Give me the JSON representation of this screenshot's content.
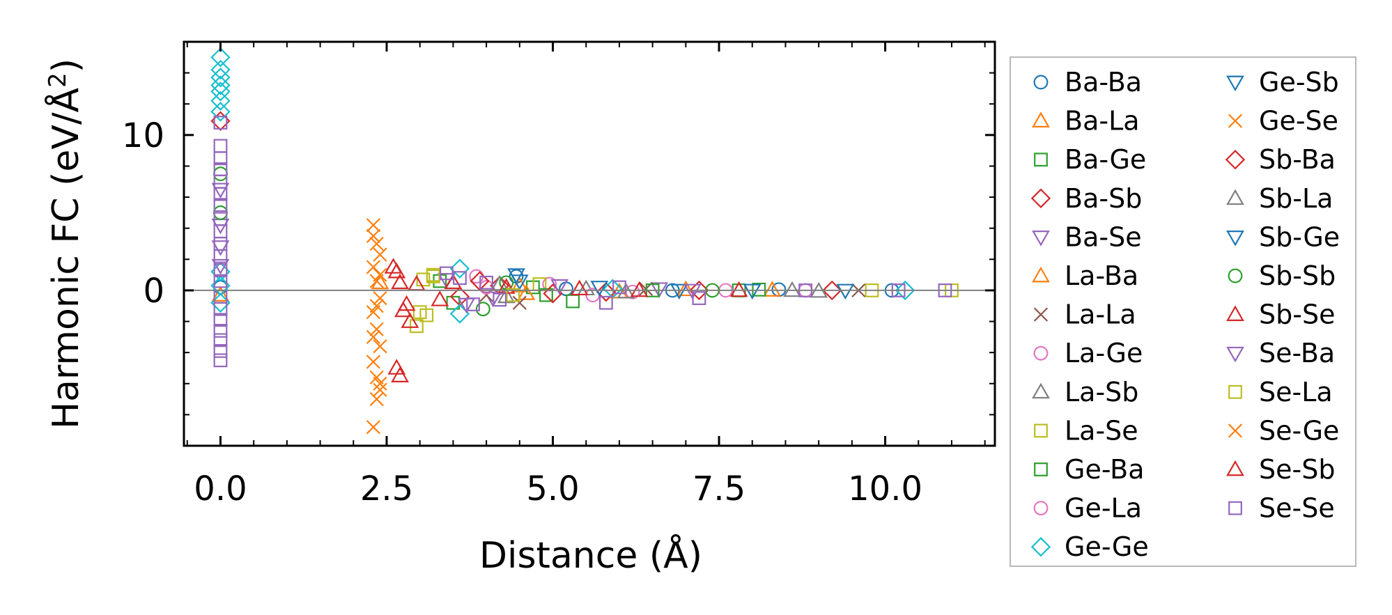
{
  "chart_data": {
    "type": "scatter",
    "xlabel": "Distance (Å)",
    "ylabel_main": "Harmonic FC (eV/Å",
    "ylabel_sup": "2",
    "ylabel_close": ")",
    "xlim": [
      -0.55,
      11.65
    ],
    "ylim": [
      -10,
      16
    ],
    "xticks": [
      0.0,
      2.5,
      5.0,
      7.5,
      10.0
    ],
    "xtick_labels": [
      "0.0",
      "2.5",
      "5.0",
      "7.5",
      "10.0"
    ],
    "yticks": [
      0,
      10
    ],
    "ytick_labels": [
      "0",
      "10"
    ],
    "reference_line_y": 0,
    "legend_position": "right",
    "series": [
      {
        "name": "Ba-Ba",
        "marker": "circle",
        "color": "#1f77b4",
        "points": [
          [
            0,
            0.2
          ],
          [
            4.45,
            0.9
          ],
          [
            5.2,
            0.1
          ],
          [
            6.8,
            0.0
          ],
          [
            8.4,
            0.05
          ],
          [
            10.1,
            0.0
          ]
        ]
      },
      {
        "name": "Ba-La",
        "marker": "triangle-up",
        "color": "#ff7f0e",
        "points": [
          [
            0,
            -0.3
          ],
          [
            4.5,
            0.3
          ],
          [
            6.0,
            -0.1
          ],
          [
            8.3,
            0.02
          ]
        ]
      },
      {
        "name": "Ba-Ge",
        "marker": "square",
        "color": "#2ca02c",
        "points": [
          [
            3.3,
            0.6
          ],
          [
            3.5,
            -0.8
          ],
          [
            4.7,
            0.2
          ],
          [
            5.3,
            -0.7
          ],
          [
            7.8,
            0.0
          ]
        ]
      },
      {
        "name": "Ba-Sb",
        "marker": "diamond",
        "color": "#d62728",
        "points": [
          [
            0,
            10.9
          ],
          [
            3.6,
            -0.4
          ],
          [
            4.2,
            0.3
          ],
          [
            5.8,
            -0.1
          ],
          [
            9.2,
            0.0
          ]
        ]
      },
      {
        "name": "Ba-Se",
        "marker": "triangle-down",
        "color": "#9467bd",
        "points": [
          [
            0,
            6.5
          ],
          [
            0,
            4.2
          ],
          [
            3.4,
            0.7
          ],
          [
            4.1,
            -0.5
          ],
          [
            6.6,
            0.1
          ]
        ]
      },
      {
        "name": "La-Ba",
        "marker": "triangle-up",
        "color": "#ff7f0e",
        "points": [
          [
            2.4,
            0.5
          ],
          [
            4.6,
            -0.2
          ],
          [
            7.0,
            0.05
          ]
        ]
      },
      {
        "name": "La-La",
        "marker": "x",
        "color": "#8c564b",
        "points": [
          [
            4.0,
            -0.3
          ],
          [
            4.5,
            -0.8
          ],
          [
            6.4,
            0.1
          ],
          [
            9.6,
            0.0
          ]
        ]
      },
      {
        "name": "La-Ge",
        "marker": "circle",
        "color": "#e377c2",
        "points": [
          [
            3.85,
            0.9
          ],
          [
            4.95,
            0.4
          ],
          [
            6.2,
            -0.1
          ],
          [
            8.8,
            0.0
          ]
        ]
      },
      {
        "name": "La-Sb",
        "marker": "triangle-up",
        "color": "#7f7f7f",
        "points": [
          [
            4.3,
            -0.4
          ],
          [
            5.5,
            0.1
          ],
          [
            9.0,
            -0.05
          ]
        ]
      },
      {
        "name": "La-Se",
        "marker": "square",
        "color": "#bcbd22",
        "points": [
          [
            2.95,
            -2.3
          ],
          [
            3.05,
            0.7
          ],
          [
            3.1,
            -1.6
          ],
          [
            3.2,
            0.9
          ],
          [
            4.8,
            0.4
          ],
          [
            11.0,
            0.0
          ]
        ]
      },
      {
        "name": "Ge-Ba",
        "marker": "square",
        "color": "#2ca02c",
        "points": [
          [
            4.9,
            -0.3
          ],
          [
            6.5,
            0.0
          ],
          [
            8.1,
            0.05
          ]
        ]
      },
      {
        "name": "Ge-La",
        "marker": "circle",
        "color": "#e377c2",
        "points": [
          [
            4.0,
            0.2
          ],
          [
            5.6,
            -0.3
          ],
          [
            7.6,
            0.0
          ]
        ]
      },
      {
        "name": "Ge-Ge",
        "marker": "diamond",
        "color": "#17becf",
        "points": [
          [
            0,
            15.0
          ],
          [
            0,
            14.2
          ],
          [
            0,
            13.7
          ],
          [
            0,
            13.2
          ],
          [
            0,
            12.8
          ],
          [
            0,
            12.2
          ],
          [
            0,
            11.5
          ],
          [
            0,
            1.2
          ],
          [
            0,
            0.3
          ],
          [
            0,
            -0.8
          ],
          [
            3.6,
            1.4
          ],
          [
            3.6,
            -1.5
          ],
          [
            5.9,
            0.1
          ],
          [
            10.3,
            0.0
          ]
        ]
      },
      {
        "name": "Ge-Sb",
        "marker": "triangle-down",
        "color": "#1f77b4",
        "points": [
          [
            4.45,
            1.0
          ],
          [
            5.7,
            0.2
          ],
          [
            8.0,
            0.0
          ]
        ]
      },
      {
        "name": "Ge-Se",
        "marker": "x",
        "color": "#ff7f0e",
        "points": [
          [
            2.3,
            4.2
          ],
          [
            2.35,
            3.0
          ],
          [
            2.4,
            2.3
          ],
          [
            2.3,
            1.5
          ],
          [
            2.35,
            0.6
          ],
          [
            2.4,
            -0.5
          ],
          [
            2.3,
            -1.4
          ],
          [
            2.35,
            -2.5
          ],
          [
            2.4,
            -3.6
          ],
          [
            2.3,
            -4.6
          ],
          [
            2.35,
            -5.6
          ],
          [
            2.4,
            -6.4
          ],
          [
            2.35,
            -7.0
          ],
          [
            2.3,
            -8.8
          ]
        ]
      },
      {
        "name": "Sb-Ba",
        "marker": "diamond",
        "color": "#d62728",
        "points": [
          [
            3.9,
            0.6
          ],
          [
            5.0,
            -0.2
          ],
          [
            7.2,
            0.0
          ]
        ]
      },
      {
        "name": "Sb-La",
        "marker": "triangle-up",
        "color": "#7f7f7f",
        "points": [
          [
            4.2,
            0.4
          ],
          [
            6.1,
            -0.1
          ],
          [
            8.6,
            0.0
          ]
        ]
      },
      {
        "name": "Sb-Ge",
        "marker": "triangle-down",
        "color": "#1f77b4",
        "points": [
          [
            4.5,
            0.6
          ],
          [
            6.9,
            0.0
          ],
          [
            9.4,
            0.0
          ]
        ]
      },
      {
        "name": "Sb-Sb",
        "marker": "circle",
        "color": "#2ca02c",
        "points": [
          [
            0,
            7.5
          ],
          [
            0,
            5.0
          ],
          [
            3.95,
            -1.2
          ],
          [
            4.3,
            0.5
          ],
          [
            7.4,
            0.0
          ]
        ]
      },
      {
        "name": "Sb-Se",
        "marker": "triangle-up",
        "color": "#d62728",
        "points": [
          [
            2.65,
            1.2
          ],
          [
            2.7,
            0.5
          ],
          [
            2.75,
            -1.3
          ],
          [
            2.85,
            -2.0
          ],
          [
            2.65,
            -5.0
          ],
          [
            2.7,
            -5.5
          ],
          [
            2.95,
            0.4
          ],
          [
            3.3,
            -0.6
          ],
          [
            4.3,
            0.2
          ],
          [
            6.3,
            0.0
          ]
        ]
      },
      {
        "name": "Se-Ba",
        "marker": "triangle-down",
        "color": "#9467bd",
        "points": [
          [
            0,
            2.8
          ],
          [
            0,
            1.6
          ],
          [
            3.7,
            -0.9
          ],
          [
            5.1,
            0.3
          ],
          [
            7.1,
            0.0
          ]
        ]
      },
      {
        "name": "Se-La",
        "marker": "square",
        "color": "#bcbd22",
        "points": [
          [
            3.0,
            -1.4
          ],
          [
            3.2,
            1.0
          ],
          [
            4.4,
            -0.3
          ],
          [
            9.8,
            0.0
          ]
        ]
      },
      {
        "name": "Se-Ge",
        "marker": "x",
        "color": "#ff7f0e",
        "points": [
          [
            2.3,
            3.5
          ],
          [
            2.4,
            1.0
          ],
          [
            2.35,
            -1.0
          ],
          [
            2.3,
            -3.0
          ],
          [
            2.4,
            -6.0
          ]
        ]
      },
      {
        "name": "Se-Sb",
        "marker": "triangle-up",
        "color": "#d62728",
        "points": [
          [
            2.6,
            1.5
          ],
          [
            2.8,
            -0.9
          ],
          [
            3.5,
            0.5
          ],
          [
            5.4,
            0.1
          ],
          [
            7.8,
            0.0
          ]
        ]
      },
      {
        "name": "Se-Se",
        "marker": "square",
        "color": "#9467bd",
        "points": [
          [
            0,
            10.8
          ],
          [
            0,
            9.3
          ],
          [
            0,
            8.5
          ],
          [
            0,
            7.8
          ],
          [
            0,
            7.0
          ],
          [
            0,
            6.2
          ],
          [
            0,
            5.5
          ],
          [
            0,
            4.6
          ],
          [
            0,
            3.8
          ],
          [
            0,
            3.0
          ],
          [
            0,
            2.2
          ],
          [
            0,
            1.3
          ],
          [
            0,
            0.6
          ],
          [
            0,
            -0.4
          ],
          [
            0,
            -1.2
          ],
          [
            0,
            -1.9
          ],
          [
            0,
            -2.6
          ],
          [
            0,
            -3.2
          ],
          [
            0,
            -3.9
          ],
          [
            0,
            -4.5
          ],
          [
            3.4,
            1.1
          ],
          [
            3.6,
            0.8
          ],
          [
            3.8,
            -0.9
          ],
          [
            4.0,
            0.5
          ],
          [
            4.2,
            -0.6
          ],
          [
            5.8,
            -0.8
          ],
          [
            6.0,
            0.2
          ],
          [
            7.2,
            -0.5
          ],
          [
            8.8,
            0.0
          ],
          [
            10.2,
            0.0
          ],
          [
            10.9,
            0.0
          ]
        ]
      }
    ]
  }
}
